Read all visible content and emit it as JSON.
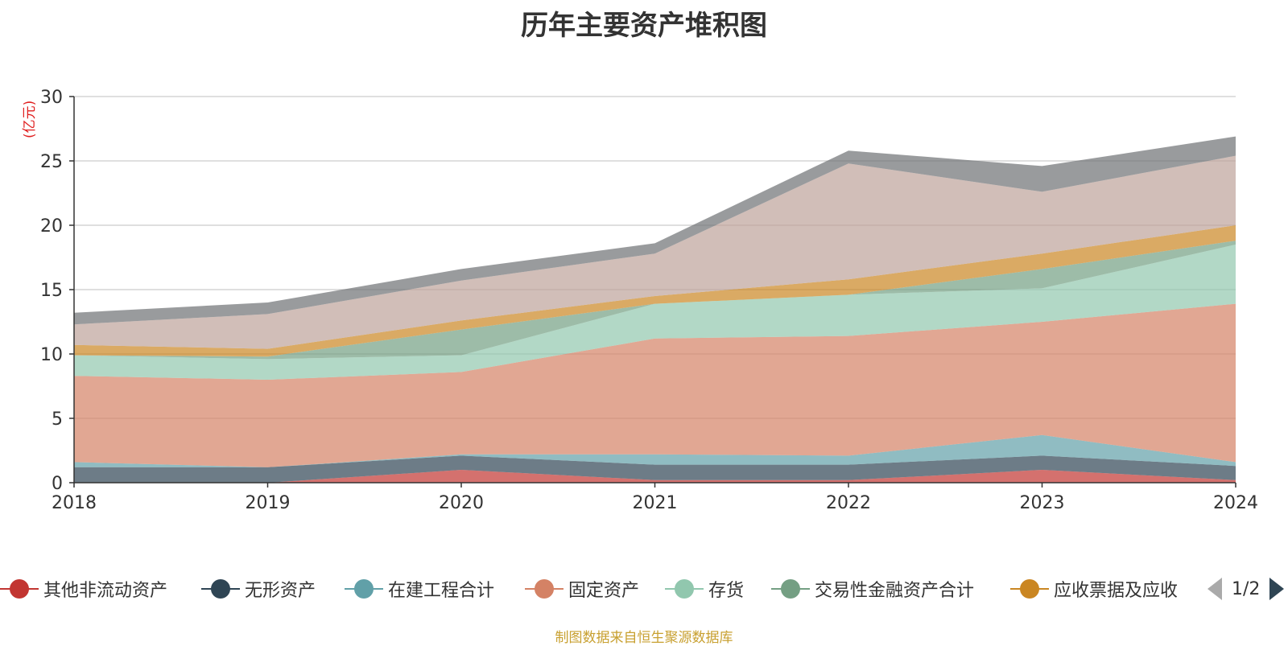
{
  "title": "历年主要资产堆积图",
  "unit_label": "(亿元)",
  "source_note": "制图数据来自恒生聚源数据库",
  "legend_pager": "1/2",
  "legend": [
    {
      "name": "其他非流动资产",
      "color": "#c23531"
    },
    {
      "name": "无形资产",
      "color": "#2f4554"
    },
    {
      "name": "在建工程合计",
      "color": "#61a0a8"
    },
    {
      "name": "固定资产",
      "color": "#d48265"
    },
    {
      "name": "存货",
      "color": "#91c7ae"
    },
    {
      "name": "交易性金融资产合计",
      "color": "#749f83"
    },
    {
      "name": "应收票据及应收",
      "color": "#ca8622"
    }
  ],
  "chart_data": {
    "type": "area",
    "stacked": true,
    "title": "历年主要资产堆积图",
    "ylabel": "(亿元)",
    "xlabel": "",
    "categories": [
      "2018",
      "2019",
      "2020",
      "2021",
      "2022",
      "2023",
      "2024"
    ],
    "ylim": [
      0,
      30
    ],
    "yticks": [
      0,
      5,
      10,
      15,
      20,
      25,
      30
    ],
    "grid": true,
    "legend_position": "bottom",
    "series": [
      {
        "name": "其他非流动资产",
        "color": "#c23531",
        "values": [
          0.0,
          0.0,
          1.0,
          0.2,
          0.2,
          1.0,
          0.2
        ]
      },
      {
        "name": "无形资产",
        "color": "#2f4554",
        "values": [
          1.2,
          1.2,
          1.1,
          1.2,
          1.2,
          1.1,
          1.1
        ]
      },
      {
        "name": "在建工程合计",
        "color": "#61a0a8",
        "values": [
          0.4,
          0.0,
          0.1,
          0.8,
          0.7,
          1.6,
          0.3
        ]
      },
      {
        "name": "固定资产",
        "color": "#d48265",
        "values": [
          6.7,
          6.8,
          6.4,
          9.0,
          9.3,
          8.8,
          12.3
        ]
      },
      {
        "name": "存货",
        "color": "#91c7ae",
        "values": [
          1.6,
          1.6,
          1.3,
          2.7,
          3.2,
          2.6,
          4.6
        ]
      },
      {
        "name": "交易性金融资产合计",
        "color": "#749f83",
        "values": [
          0.0,
          0.2,
          2.0,
          0.0,
          0.0,
          1.5,
          0.3
        ]
      },
      {
        "name": "应收票据及应收",
        "color": "#ca8622",
        "values": [
          0.8,
          0.6,
          0.7,
          0.6,
          1.2,
          1.2,
          1.2
        ]
      },
      {
        "color": "#bda29a",
        "values": [
          1.6,
          2.7,
          3.1,
          3.3,
          9.0,
          4.8,
          5.4
        ]
      },
      {
        "color": "#6e7074",
        "values": [
          0.9,
          0.9,
          0.9,
          0.8,
          1.0,
          2.0,
          1.5
        ]
      }
    ]
  }
}
